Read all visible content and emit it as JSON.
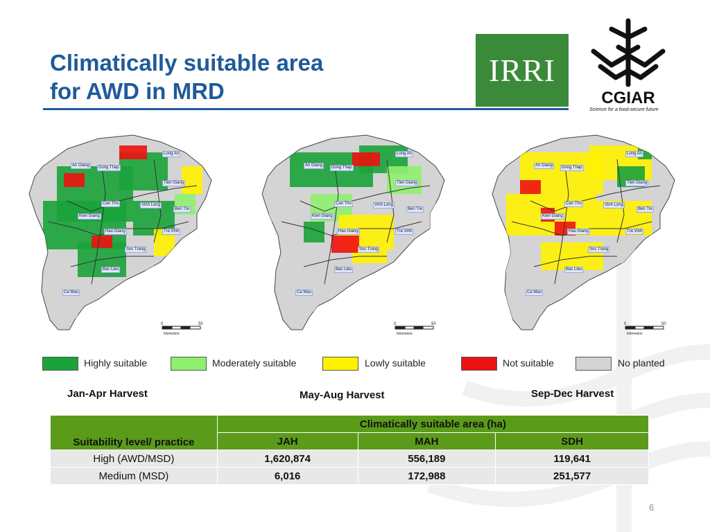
{
  "title": {
    "line1": "Climatically suitable area",
    "line2": "for AWD in MRD"
  },
  "logos": {
    "irri": "IRRI",
    "cgiar": "CGIAR",
    "cgiar_tagline": "Science for a food-secure future",
    "irri_color": "#3a8a3a"
  },
  "maps": [
    {
      "harvest": "Jan-Apr Harvest",
      "provinces": [
        "Long An",
        "An Giang",
        "Dong Thap",
        "Tien Giang",
        "Can Tho",
        "Vinh Long",
        "Ben Tre",
        "Kien Giang",
        "Hau Giang",
        "Tra Vinh",
        "Soc Trang",
        "Bac Lieu",
        "Ca Mau"
      ],
      "scale": {
        "start": "0",
        "end": "50",
        "unit": "kilometers"
      }
    },
    {
      "harvest": "May-Aug Harvest",
      "provinces": [
        "Long An",
        "An Giang",
        "Dong Thap",
        "Tien Giang",
        "Can Tho",
        "Vinh Long",
        "Ben Tre",
        "Kien Giang",
        "Hau Giang",
        "Tra Vinh",
        "Soc Trang",
        "Bac Lieu",
        "Ca Mau"
      ],
      "scale": {
        "start": "0",
        "end": "50",
        "unit": "kilometers"
      }
    },
    {
      "harvest": "Sep-Dec Harvest",
      "provinces": [
        "Long An",
        "An Giang",
        "Dong Thap",
        "Tien Giang",
        "Can Tho",
        "Vinh Long",
        "Ben Tre",
        "Kien Giang",
        "Hau Giang",
        "Tra Vinh",
        "Soc Trang",
        "Bac Lieu",
        "Ca Mau"
      ],
      "scale": {
        "start": "0",
        "end": "50",
        "unit": "kilometers"
      }
    }
  ],
  "legend": [
    {
      "label": "Highly suitable",
      "color": "#1aa33a"
    },
    {
      "label": "Moderately suitable",
      "color": "#8fef70"
    },
    {
      "label": "Lowly suitable",
      "color": "#fff200"
    },
    {
      "label": "Not suitable",
      "color": "#ee1111"
    },
    {
      "label": "No planted",
      "color": "#d4d4d4"
    }
  ],
  "table": {
    "header_group": "Climatically suitable area (ha)",
    "row_header": "Suitability level/ practice",
    "columns": [
      "JAH",
      "MAH",
      "SDH"
    ],
    "rows": [
      {
        "label": "High (AWD/MSD)",
        "values": [
          "1,620,874",
          "556,189",
          "119,641"
        ]
      },
      {
        "label": "Medium (MSD)",
        "values": [
          "6,016",
          "172,988",
          "251,577"
        ]
      }
    ]
  },
  "page_number": "6"
}
